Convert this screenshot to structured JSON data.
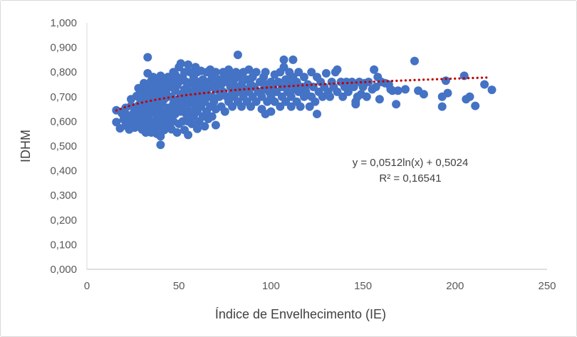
{
  "chart_data": {
    "type": "scatter",
    "title": "",
    "xlabel": "Índice de Envelhecimento (IE)",
    "ylabel": "IDHM",
    "xlim": [
      0,
      250
    ],
    "ylim": [
      0,
      1
    ],
    "x_ticks": [
      0,
      50,
      100,
      150,
      200,
      250
    ],
    "x_tick_labels": [
      "0",
      "50",
      "100",
      "150",
      "200",
      "250"
    ],
    "y_ticks": [
      0,
      0.1,
      0.2,
      0.3,
      0.4,
      0.5,
      0.6,
      0.7,
      0.8,
      0.9,
      1.0
    ],
    "y_tick_labels": [
      "0,000",
      "0,100",
      "0,200",
      "0,300",
      "0,400",
      "0,500",
      "0,600",
      "0,700",
      "0,800",
      "0,900",
      "1,000"
    ],
    "grid": false,
    "marker_color": "#4472C4",
    "trendline_color": "#C00000",
    "trendline": {
      "type": "logarithmic",
      "a": 0.0512,
      "b": 0.5024,
      "x_range": [
        16,
        218
      ],
      "equation_label": "y = 0,0512ln(x) + 0,5024",
      "r2_label": "R² = 0,16541"
    },
    "series": [
      {
        "points": [
          [
            16,
            0.597
          ],
          [
            16,
            0.645
          ],
          [
            18,
            0.572
          ],
          [
            19,
            0.633
          ],
          [
            20,
            0.608
          ],
          [
            21,
            0.583
          ],
          [
            21,
            0.655
          ],
          [
            22,
            0.625
          ],
          [
            23,
            0.567
          ],
          [
            23,
            0.602
          ],
          [
            24,
            0.663
          ],
          [
            24,
            0.69
          ],
          [
            25,
            0.588
          ],
          [
            25,
            0.63
          ],
          [
            26,
            0.575
          ],
          [
            26,
            0.612
          ],
          [
            26,
            0.648
          ],
          [
            27,
            0.703
          ],
          [
            27,
            0.598
          ],
          [
            28,
            0.735
          ],
          [
            28,
            0.62
          ],
          [
            28,
            0.665
          ],
          [
            29,
            0.58
          ],
          [
            29,
            0.641
          ],
          [
            29,
            0.69
          ],
          [
            30,
            0.567
          ],
          [
            30,
            0.605
          ],
          [
            30,
            0.728
          ],
          [
            30,
            0.66
          ],
          [
            31,
            0.625
          ],
          [
            31,
            0.7
          ],
          [
            31,
            0.755
          ],
          [
            32,
            0.555
          ],
          [
            32,
            0.59
          ],
          [
            32,
            0.642
          ],
          [
            32,
            0.678
          ],
          [
            33,
            0.86
          ],
          [
            33,
            0.61
          ],
          [
            33,
            0.72
          ],
          [
            33,
            0.795
          ],
          [
            34,
            0.573
          ],
          [
            34,
            0.66
          ],
          [
            34,
            0.745
          ],
          [
            34,
            0.63
          ],
          [
            35,
            0.555
          ],
          [
            35,
            0.69
          ],
          [
            35,
            0.765
          ],
          [
            36,
            0.6
          ],
          [
            36,
            0.648
          ],
          [
            36,
            0.712
          ],
          [
            36,
            0.78
          ],
          [
            37,
            0.58
          ],
          [
            37,
            0.67
          ],
          [
            37,
            0.735
          ],
          [
            38,
            0.55
          ],
          [
            38,
            0.625
          ],
          [
            38,
            0.69
          ],
          [
            38,
            0.76
          ],
          [
            39,
            0.6
          ],
          [
            39,
            0.655
          ],
          [
            39,
            0.72
          ],
          [
            40,
            0.505
          ],
          [
            40,
            0.54
          ],
          [
            40,
            0.58
          ],
          [
            40,
            0.64
          ],
          [
            40,
            0.7
          ],
          [
            40,
            0.785
          ],
          [
            41,
            0.615
          ],
          [
            41,
            0.67
          ],
          [
            41,
            0.745
          ],
          [
            42,
            0.565
          ],
          [
            42,
            0.6
          ],
          [
            42,
            0.69
          ],
          [
            42,
            0.76
          ],
          [
            43,
            0.63
          ],
          [
            43,
            0.72
          ],
          [
            44,
            0.58
          ],
          [
            44,
            0.655
          ],
          [
            44,
            0.7
          ],
          [
            44,
            0.78
          ],
          [
            45,
            0.61
          ],
          [
            45,
            0.74
          ],
          [
            46,
            0.568
          ],
          [
            46,
            0.64
          ],
          [
            46,
            0.7
          ],
          [
            46,
            0.768
          ],
          [
            47,
            0.6
          ],
          [
            47,
            0.672
          ],
          [
            47,
            0.8
          ],
          [
            48,
            0.63
          ],
          [
            48,
            0.725
          ],
          [
            48,
            0.79
          ],
          [
            49,
            0.555
          ],
          [
            49,
            0.66
          ],
          [
            49,
            0.745
          ],
          [
            50,
            0.82
          ],
          [
            50,
            0.59
          ],
          [
            50,
            0.69
          ],
          [
            50,
            0.76
          ],
          [
            51,
            0.64
          ],
          [
            51,
            0.71
          ],
          [
            51,
            0.835
          ],
          [
            52,
            0.6
          ],
          [
            52,
            0.68
          ],
          [
            52,
            0.78
          ],
          [
            53,
            0.565
          ],
          [
            53,
            0.66
          ],
          [
            53,
            0.73
          ],
          [
            53,
            0.8
          ],
          [
            54,
            0.63
          ],
          [
            54,
            0.7
          ],
          [
            54,
            0.76
          ],
          [
            55,
            0.545
          ],
          [
            55,
            0.6
          ],
          [
            55,
            0.67
          ],
          [
            55,
            0.75
          ],
          [
            55,
            0.83
          ],
          [
            56,
            0.64
          ],
          [
            56,
            0.72
          ],
          [
            56,
            0.8
          ],
          [
            57,
            0.59
          ],
          [
            57,
            0.68
          ],
          [
            57,
            0.76
          ],
          [
            58,
            0.62
          ],
          [
            58,
            0.7
          ],
          [
            58,
            0.78
          ],
          [
            59,
            0.66
          ],
          [
            59,
            0.74
          ],
          [
            59,
            0.82
          ],
          [
            60,
            0.57
          ],
          [
            60,
            0.64
          ],
          [
            60,
            0.72
          ],
          [
            60,
            0.8
          ],
          [
            61,
            0.6
          ],
          [
            61,
            0.69
          ],
          [
            61,
            0.76
          ],
          [
            62,
            0.66
          ],
          [
            62,
            0.73
          ],
          [
            62,
            0.805
          ],
          [
            63,
            0.62
          ],
          [
            63,
            0.7
          ],
          [
            63,
            0.77
          ],
          [
            64,
            0.58
          ],
          [
            64,
            0.68
          ],
          [
            64,
            0.75
          ],
          [
            65,
            0.64
          ],
          [
            65,
            0.72
          ],
          [
            65,
            0.8
          ],
          [
            66,
            0.61
          ],
          [
            66,
            0.7
          ],
          [
            66,
            0.76
          ],
          [
            67,
            0.66
          ],
          [
            67,
            0.74
          ],
          [
            67,
            0.81
          ],
          [
            68,
            0.62
          ],
          [
            68,
            0.7
          ],
          [
            68,
            0.78
          ],
          [
            69,
            0.68
          ],
          [
            69,
            0.75
          ],
          [
            70,
            0.585
          ],
          [
            70,
            0.65
          ],
          [
            70,
            0.73
          ],
          [
            70,
            0.8
          ],
          [
            72,
            0.7
          ],
          [
            72,
            0.77
          ],
          [
            73,
            0.66
          ],
          [
            73,
            0.75
          ],
          [
            74,
            0.8
          ],
          [
            74,
            0.72
          ],
          [
            75,
            0.64
          ],
          [
            75,
            0.78
          ],
          [
            76,
            0.7
          ],
          [
            76,
            0.76
          ],
          [
            77,
            0.68
          ],
          [
            77,
            0.81
          ],
          [
            78,
            0.74
          ],
          [
            78,
            0.79
          ],
          [
            79,
            0.66
          ],
          [
            79,
            0.72
          ],
          [
            80,
            0.7
          ],
          [
            80,
            0.77
          ],
          [
            81,
            0.74
          ],
          [
            81,
            0.8
          ],
          [
            82,
            0.87
          ],
          [
            82,
            0.68
          ],
          [
            83,
            0.72
          ],
          [
            83,
            0.78
          ],
          [
            84,
            0.66
          ],
          [
            84,
            0.75
          ],
          [
            85,
            0.7
          ],
          [
            85,
            0.8
          ],
          [
            86,
            0.73
          ],
          [
            87,
            0.68
          ],
          [
            87,
            0.77
          ],
          [
            88,
            0.72
          ],
          [
            88,
            0.81
          ],
          [
            89,
            0.66
          ],
          [
            89,
            0.75
          ],
          [
            90,
            0.7
          ],
          [
            90,
            0.78
          ],
          [
            91,
            0.74
          ],
          [
            92,
            0.68
          ],
          [
            92,
            0.8
          ],
          [
            93,
            0.72
          ],
          [
            94,
            0.76
          ],
          [
            95,
            0.65
          ],
          [
            95,
            0.7
          ],
          [
            96,
            0.78
          ],
          [
            96,
            0.73
          ],
          [
            97,
            0.63
          ],
          [
            97,
            0.8
          ],
          [
            98,
            0.68
          ],
          [
            98,
            0.75
          ],
          [
            99,
            0.72
          ],
          [
            100,
            0.64
          ],
          [
            100,
            0.7
          ],
          [
            100,
            0.76
          ],
          [
            101,
            0.74
          ],
          [
            102,
            0.68
          ],
          [
            102,
            0.79
          ],
          [
            103,
            0.72
          ],
          [
            104,
            0.76
          ],
          [
            105,
            0.66
          ],
          [
            105,
            0.8
          ],
          [
            106,
            0.7
          ],
          [
            106,
            0.74
          ],
          [
            107,
            0.85
          ],
          [
            107,
            0.82
          ],
          [
            108,
            0.68
          ],
          [
            108,
            0.77
          ],
          [
            109,
            0.72
          ],
          [
            110,
            0.75
          ],
          [
            110,
            0.8
          ],
          [
            111,
            0.66
          ],
          [
            111,
            0.7
          ],
          [
            112,
            0.85
          ],
          [
            112,
            0.78
          ],
          [
            113,
            0.73
          ],
          [
            114,
            0.68
          ],
          [
            114,
            0.76
          ],
          [
            115,
            0.72
          ],
          [
            115,
            0.8
          ],
          [
            116,
            0.66
          ],
          [
            117,
            0.74
          ],
          [
            118,
            0.7
          ],
          [
            118,
            0.78
          ],
          [
            119,
            0.72
          ],
          [
            120,
            0.75
          ],
          [
            121,
            0.66
          ],
          [
            122,
            0.7
          ],
          [
            122,
            0.8
          ],
          [
            123,
            0.74
          ],
          [
            124,
            0.68
          ],
          [
            125,
            0.63
          ],
          [
            125,
            0.78
          ],
          [
            126,
            0.72
          ],
          [
            127,
            0.76
          ],
          [
            128,
            0.7
          ],
          [
            129,
            0.74
          ],
          [
            130,
            0.795
          ],
          [
            131,
            0.72
          ],
          [
            132,
            0.7
          ],
          [
            133,
            0.76
          ],
          [
            134,
            0.74
          ],
          [
            135,
            0.8
          ],
          [
            136,
            0.81
          ],
          [
            136,
            0.72
          ],
          [
            138,
            0.76
          ],
          [
            139,
            0.7
          ],
          [
            140,
            0.74
          ],
          [
            141,
            0.76
          ],
          [
            142,
            0.72
          ],
          [
            143,
            0.75
          ],
          [
            144,
            0.76
          ],
          [
            145,
            0.74
          ],
          [
            146,
            0.67
          ],
          [
            146,
            0.68
          ],
          [
            147,
            0.7
          ],
          [
            148,
            0.76
          ],
          [
            149,
            0.71
          ],
          [
            150,
            0.74
          ],
          [
            151,
            0.755
          ],
          [
            152,
            0.7
          ],
          [
            153,
            0.76
          ],
          [
            155,
            0.73
          ],
          [
            156,
            0.81
          ],
          [
            157,
            0.74
          ],
          [
            158,
            0.78
          ],
          [
            159,
            0.69
          ],
          [
            160,
            0.76
          ],
          [
            162,
            0.755
          ],
          [
            164,
            0.75
          ],
          [
            165,
            0.73
          ],
          [
            166,
            0.725
          ],
          [
            168,
            0.67
          ],
          [
            169,
            0.725
          ],
          [
            173,
            0.73
          ],
          [
            178,
            0.845
          ],
          [
            180,
            0.725
          ],
          [
            183,
            0.71
          ],
          [
            193,
            0.66
          ],
          [
            193,
            0.7
          ],
          [
            195,
            0.765
          ],
          [
            196,
            0.715
          ],
          [
            205,
            0.785
          ],
          [
            206,
            0.69
          ],
          [
            208,
            0.7
          ],
          [
            211,
            0.663
          ],
          [
            216,
            0.75
          ],
          [
            220,
            0.728
          ]
        ]
      }
    ]
  }
}
